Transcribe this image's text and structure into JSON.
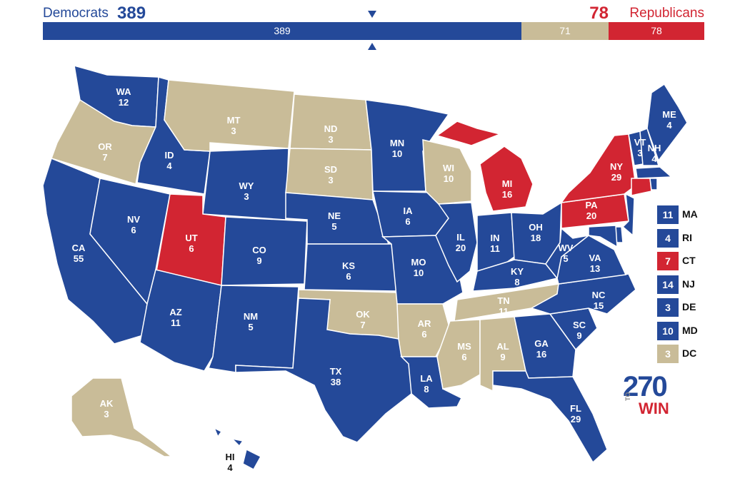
{
  "colors": {
    "dem": "#244999",
    "rep": "#d22532",
    "tossup": "#c9bc98"
  },
  "header": {
    "dem_label": "Democrats",
    "dem_total": "389",
    "rep_total": "78",
    "rep_label": "Republicans"
  },
  "bar": {
    "dem": {
      "value": 389,
      "label": "389"
    },
    "tossup": {
      "value": 71,
      "label": "71"
    },
    "rep": {
      "value": 78,
      "label": "78"
    }
  },
  "states": [
    {
      "abbr": "WA",
      "ev": "12",
      "party": "dem"
    },
    {
      "abbr": "OR",
      "ev": "7",
      "party": "tossup"
    },
    {
      "abbr": "CA",
      "ev": "55",
      "party": "dem"
    },
    {
      "abbr": "ID",
      "ev": "4",
      "party": "dem"
    },
    {
      "abbr": "NV",
      "ev": "6",
      "party": "dem"
    },
    {
      "abbr": "MT",
      "ev": "3",
      "party": "tossup"
    },
    {
      "abbr": "WY",
      "ev": "3",
      "party": "dem"
    },
    {
      "abbr": "UT",
      "ev": "6",
      "party": "rep"
    },
    {
      "abbr": "AZ",
      "ev": "11",
      "party": "dem"
    },
    {
      "abbr": "CO",
      "ev": "9",
      "party": "dem"
    },
    {
      "abbr": "NM",
      "ev": "5",
      "party": "dem"
    },
    {
      "abbr": "ND",
      "ev": "3",
      "party": "tossup"
    },
    {
      "abbr": "SD",
      "ev": "3",
      "party": "tossup"
    },
    {
      "abbr": "NE",
      "ev": "5",
      "party": "dem"
    },
    {
      "abbr": "KS",
      "ev": "6",
      "party": "dem"
    },
    {
      "abbr": "OK",
      "ev": "7",
      "party": "tossup"
    },
    {
      "abbr": "TX",
      "ev": "38",
      "party": "dem"
    },
    {
      "abbr": "MN",
      "ev": "10",
      "party": "dem"
    },
    {
      "abbr": "IA",
      "ev": "6",
      "party": "dem"
    },
    {
      "abbr": "MO",
      "ev": "10",
      "party": "dem"
    },
    {
      "abbr": "AR",
      "ev": "6",
      "party": "tossup"
    },
    {
      "abbr": "LA",
      "ev": "8",
      "party": "dem"
    },
    {
      "abbr": "WI",
      "ev": "10",
      "party": "tossup"
    },
    {
      "abbr": "IL",
      "ev": "20",
      "party": "dem"
    },
    {
      "abbr": "MI",
      "ev": "16",
      "party": "rep"
    },
    {
      "abbr": "IN",
      "ev": "11",
      "party": "dem"
    },
    {
      "abbr": "OH",
      "ev": "18",
      "party": "dem"
    },
    {
      "abbr": "KY",
      "ev": "8",
      "party": "dem"
    },
    {
      "abbr": "TN",
      "ev": "11",
      "party": "tossup"
    },
    {
      "abbr": "MS",
      "ev": "6",
      "party": "tossup"
    },
    {
      "abbr": "AL",
      "ev": "9",
      "party": "tossup"
    },
    {
      "abbr": "GA",
      "ev": "16",
      "party": "dem"
    },
    {
      "abbr": "FL",
      "ev": "29",
      "party": "dem"
    },
    {
      "abbr": "SC",
      "ev": "9",
      "party": "dem"
    },
    {
      "abbr": "NC",
      "ev": "15",
      "party": "dem"
    },
    {
      "abbr": "VA",
      "ev": "13",
      "party": "dem"
    },
    {
      "abbr": "WV",
      "ev": "5",
      "party": "dem"
    },
    {
      "abbr": "PA",
      "ev": "20",
      "party": "rep"
    },
    {
      "abbr": "NY",
      "ev": "29",
      "party": "rep"
    },
    {
      "abbr": "VT",
      "ev": "3",
      "party": "dem"
    },
    {
      "abbr": "NH",
      "ev": "4",
      "party": "dem"
    },
    {
      "abbr": "ME",
      "ev": "4",
      "party": "dem"
    },
    {
      "abbr": "AK",
      "ev": "3",
      "party": "tossup"
    },
    {
      "abbr": "HI",
      "ev": "4",
      "party": "dem"
    }
  ],
  "small_states": [
    {
      "abbr": "MA",
      "ev": "11",
      "party": "dem"
    },
    {
      "abbr": "RI",
      "ev": "4",
      "party": "dem"
    },
    {
      "abbr": "CT",
      "ev": "7",
      "party": "rep"
    },
    {
      "abbr": "NJ",
      "ev": "14",
      "party": "dem"
    },
    {
      "abbr": "DE",
      "ev": "3",
      "party": "dem"
    },
    {
      "abbr": "MD",
      "ev": "10",
      "party": "dem"
    },
    {
      "abbr": "DC",
      "ev": "3",
      "party": "tossup"
    }
  ],
  "logo": {
    "number": "270",
    "to": "TO",
    "win": "WIN"
  }
}
